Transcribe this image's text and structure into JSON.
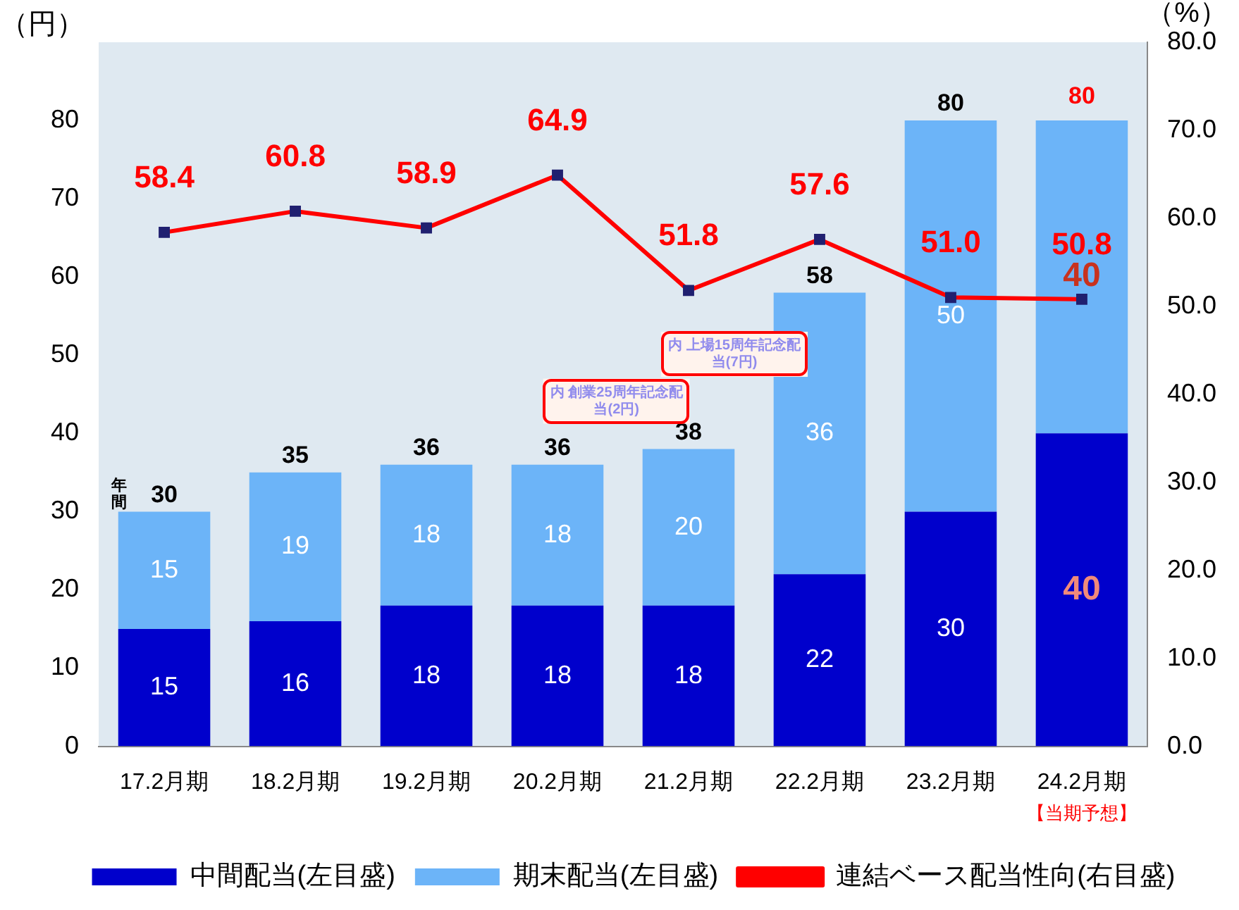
{
  "chart_data": {
    "type": "bar",
    "stacked": true,
    "ylabel": "（円）",
    "y2label": "（%）",
    "categories": [
      "17.2月期",
      "18.2月期",
      "19.2月期",
      "20.2月期",
      "21.2月期",
      "22.2月期",
      "23.2月期",
      "24.2月期"
    ],
    "series": [
      {
        "name": "中間配当(左目盛)",
        "color": "#0000cc",
        "values": [
          15,
          16,
          18,
          18,
          18,
          22,
          30,
          40
        ]
      },
      {
        "name": "期末配当(左目盛)",
        "color": "#6cb4f8",
        "values": [
          15,
          19,
          18,
          18,
          20,
          36,
          50,
          40
        ]
      },
      {
        "name": "連結ベース配当性向(右目盛)",
        "type": "line",
        "axis": "y2",
        "color": "#ff0000",
        "values": [
          58.4,
          60.8,
          58.9,
          64.9,
          51.8,
          57.6,
          51.0,
          50.8
        ],
        "value_labels": [
          "58.4",
          "60.8",
          "58.9",
          "64.9",
          "51.8",
          "57.6",
          "51.0",
          "50.8"
        ]
      }
    ],
    "ylim": [
      0,
      90
    ],
    "yticks": [
      0,
      10,
      20,
      30,
      40,
      50,
      60,
      70,
      80
    ],
    "y2lim": [
      0,
      80
    ],
    "y2ticks": [
      {
        "value": 0,
        "label": "0.0"
      },
      {
        "value": 10,
        "label": "10.0"
      },
      {
        "value": 20,
        "label": "20.0"
      },
      {
        "value": 30,
        "label": "30.0"
      },
      {
        "value": 40,
        "label": "40.0"
      },
      {
        "value": 50,
        "label": "50.0"
      },
      {
        "value": 60,
        "label": "60.0"
      },
      {
        "value": 70,
        "label": "70.0"
      },
      {
        "value": 80,
        "label": "80.0"
      }
    ],
    "data_labels": true,
    "totals": [
      "30",
      "35",
      "36",
      "36",
      "38",
      "58",
      "80",
      "80"
    ],
    "annotations": [
      "年間",
      "【当期予想】",
      "内 創業25周年記念配当(2円)",
      "内 上場15周年記念配当(7円)"
    ],
    "marker": "square",
    "legend": "bottom",
    "grid": false
  }
}
